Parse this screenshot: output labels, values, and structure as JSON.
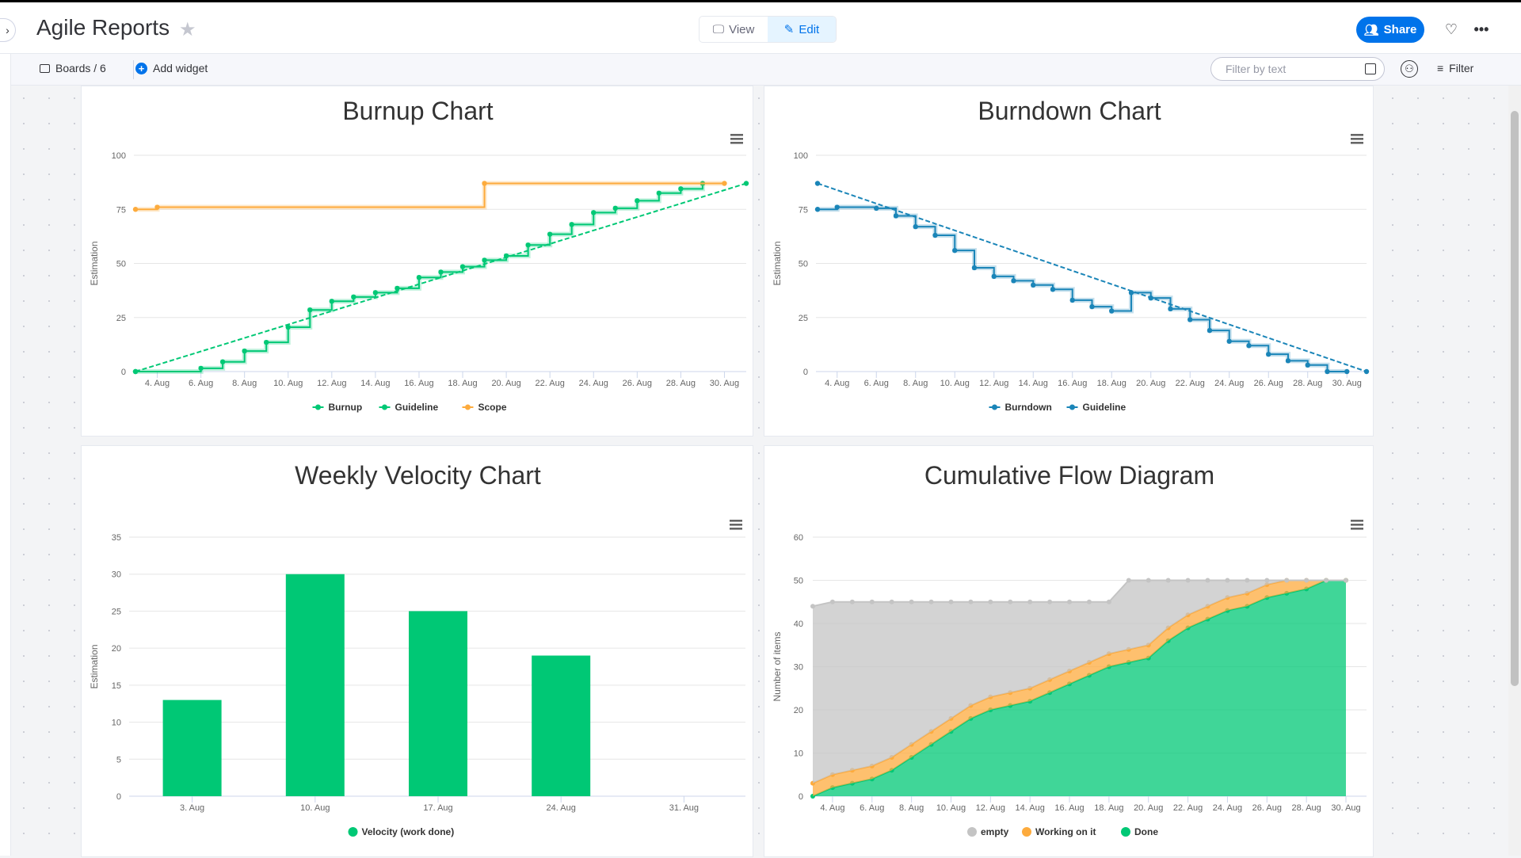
{
  "header": {
    "title": "Agile Reports",
    "view_label": "View",
    "edit_label": "Edit",
    "share_label": "Share"
  },
  "toolbar": {
    "boards_label": "Boards / 6",
    "add_widget_label": "Add widget",
    "filter_placeholder": "Filter by text",
    "filter_label": "Filter"
  },
  "colors": {
    "brand": "#0073ea",
    "green": "#00c875",
    "orange": "#fdab3d",
    "blue": "#1a85b8",
    "gray": "#c4c4c4"
  },
  "chart_data": [
    {
      "type": "line",
      "title": "Burnup Chart",
      "ylabel": "Estimation",
      "ylim": [
        0,
        100
      ],
      "y_ticks": [
        "0",
        "25",
        "50",
        "75",
        "100"
      ],
      "y_tick_values": [
        0,
        25,
        50,
        75,
        100
      ],
      "x_range": [
        "3 Aug",
        "31 Aug"
      ],
      "x_ticks": [
        "4. Aug",
        "6. Aug",
        "8. Aug",
        "10. Aug",
        "12. Aug",
        "14. Aug",
        "16. Aug",
        "18. Aug",
        "20. Aug",
        "22. Aug",
        "24. Aug",
        "26. Aug",
        "28. Aug",
        "30. Aug"
      ],
      "x_tick_days": [
        4,
        6,
        8,
        10,
        12,
        14,
        16,
        18,
        20,
        22,
        24,
        26,
        28,
        30
      ],
      "legend": "bottom",
      "grid": true,
      "series": [
        {
          "name": "Burnup",
          "color": "#00c875",
          "style": "step",
          "points": [
            [
              "3 Aug",
              0
            ],
            [
              "6 Aug",
              1.5
            ],
            [
              "7 Aug",
              4.5
            ],
            [
              "8 Aug",
              9.5
            ],
            [
              "9 Aug",
              13.5
            ],
            [
              "10 Aug",
              20.5
            ],
            [
              "11 Aug",
              28.5
            ],
            [
              "12 Aug",
              32.5
            ],
            [
              "13 Aug",
              34.5
            ],
            [
              "14 Aug",
              36.5
            ],
            [
              "15 Aug",
              38.5
            ],
            [
              "16 Aug",
              43.5
            ],
            [
              "17 Aug",
              46
            ],
            [
              "18 Aug",
              48.5
            ],
            [
              "19 Aug",
              51.5
            ],
            [
              "20 Aug",
              53.5
            ],
            [
              "21 Aug",
              58.5
            ],
            [
              "22 Aug",
              63.5
            ],
            [
              "23 Aug",
              68
            ],
            [
              "24 Aug",
              73.5
            ],
            [
              "25 Aug",
              75.5
            ],
            [
              "26 Aug",
              79
            ],
            [
              "27 Aug",
              82.5
            ],
            [
              "28 Aug",
              84.5
            ],
            [
              "29 Aug",
              87
            ]
          ]
        },
        {
          "name": "Guideline",
          "color": "#00c875",
          "style": "dashed",
          "points": [
            [
              "3 Aug",
              0
            ],
            [
              "31 Aug",
              87
            ]
          ]
        },
        {
          "name": "Scope",
          "color": "#fdab3d",
          "style": "step",
          "points": [
            [
              "3 Aug",
              75
            ],
            [
              "4 Aug",
              76
            ],
            [
              "19 Aug",
              87
            ],
            [
              "30 Aug",
              87
            ]
          ]
        }
      ]
    },
    {
      "type": "line",
      "title": "Burndown Chart",
      "ylabel": "Estimation",
      "ylim": [
        0,
        100
      ],
      "y_ticks": [
        "0",
        "25",
        "50",
        "75",
        "100"
      ],
      "y_tick_values": [
        0,
        25,
        50,
        75,
        100
      ],
      "x_range": [
        "3 Aug",
        "31 Aug"
      ],
      "x_ticks": [
        "4. Aug",
        "6. Aug",
        "8. Aug",
        "10. Aug",
        "12. Aug",
        "14. Aug",
        "16. Aug",
        "18. Aug",
        "20. Aug",
        "22. Aug",
        "24. Aug",
        "26. Aug",
        "28. Aug",
        "30. Aug"
      ],
      "x_tick_days": [
        4,
        6,
        8,
        10,
        12,
        14,
        16,
        18,
        20,
        22,
        24,
        26,
        28,
        30
      ],
      "legend": "bottom",
      "grid": true,
      "series": [
        {
          "name": "Burndown",
          "color": "#1a85b8",
          "style": "step",
          "points": [
            [
              "3 Aug",
              75
            ],
            [
              "4 Aug",
              76
            ],
            [
              "6 Aug",
              75.5
            ],
            [
              "7 Aug",
              72
            ],
            [
              "8 Aug",
              67
            ],
            [
              "9 Aug",
              63
            ],
            [
              "10 Aug",
              56
            ],
            [
              "11 Aug",
              48
            ],
            [
              "12 Aug",
              44
            ],
            [
              "13 Aug",
              42
            ],
            [
              "14 Aug",
              40
            ],
            [
              "15 Aug",
              38
            ],
            [
              "16 Aug",
              33
            ],
            [
              "17 Aug",
              30
            ],
            [
              "18 Aug",
              28
            ],
            [
              "19 Aug",
              36.5
            ],
            [
              "20 Aug",
              34
            ],
            [
              "21 Aug",
              29
            ],
            [
              "22 Aug",
              24
            ],
            [
              "23 Aug",
              19
            ],
            [
              "24 Aug",
              14
            ],
            [
              "25 Aug",
              12
            ],
            [
              "26 Aug",
              8
            ],
            [
              "27 Aug",
              5
            ],
            [
              "28 Aug",
              3
            ],
            [
              "29 Aug",
              0
            ],
            [
              "30 Aug",
              0
            ]
          ]
        },
        {
          "name": "Guideline",
          "color": "#1a85b8",
          "style": "dashed",
          "points": [
            [
              "3 Aug",
              87
            ],
            [
              "31 Aug",
              0
            ]
          ]
        }
      ]
    },
    {
      "type": "bar",
      "title": "Weekly Velocity Chart",
      "ylabel": "Estimation",
      "ylim": [
        0,
        35
      ],
      "y_ticks": [
        "0",
        "5",
        "10",
        "15",
        "20",
        "25",
        "30",
        "35"
      ],
      "y_tick_values": [
        0,
        5,
        10,
        15,
        20,
        25,
        30,
        35
      ],
      "categories": [
        "3. Aug",
        "10. Aug",
        "17. Aug",
        "24. Aug",
        "31. Aug"
      ],
      "legend": "bottom",
      "grid": true,
      "series": [
        {
          "name": "Velocity (work done)",
          "color": "#00c875",
          "values": [
            13,
            30,
            25,
            19,
            0
          ]
        }
      ]
    },
    {
      "type": "area",
      "stacked": true,
      "title": "Cumulative Flow Diagram",
      "ylabel": "Number of items",
      "ylim": [
        0,
        60
      ],
      "y_ticks": [
        "0",
        "10",
        "20",
        "30",
        "40",
        "50",
        "60"
      ],
      "y_tick_values": [
        0,
        10,
        20,
        30,
        40,
        50,
        60
      ],
      "x_range": [
        "3 Aug",
        "31 Aug"
      ],
      "x_ticks": [
        "4. Aug",
        "6. Aug",
        "8. Aug",
        "10. Aug",
        "12. Aug",
        "14. Aug",
        "16. Aug",
        "18. Aug",
        "20. Aug",
        "22. Aug",
        "24. Aug",
        "26. Aug",
        "28. Aug",
        "30. Aug"
      ],
      "x_tick_days": [
        4,
        6,
        8,
        10,
        12,
        14,
        16,
        18,
        20,
        22,
        24,
        26,
        28,
        30
      ],
      "dates": [
        "3 Aug",
        "4 Aug",
        "5 Aug",
        "6 Aug",
        "7 Aug",
        "8 Aug",
        "9 Aug",
        "10 Aug",
        "11 Aug",
        "12 Aug",
        "13 Aug",
        "14 Aug",
        "15 Aug",
        "16 Aug",
        "17 Aug",
        "18 Aug",
        "19 Aug",
        "20 Aug",
        "21 Aug",
        "22 Aug",
        "23 Aug",
        "24 Aug",
        "25 Aug",
        "26 Aug",
        "27 Aug",
        "28 Aug",
        "29 Aug",
        "30 Aug"
      ],
      "legend": "bottom",
      "grid": true,
      "series": [
        {
          "name": "empty",
          "color": "#c4c4c4",
          "values": [
            41,
            40,
            39,
            38,
            36,
            33,
            30,
            27,
            24,
            22,
            21,
            20,
            18,
            16,
            14,
            12,
            16,
            15,
            11,
            8,
            6,
            4,
            3,
            1,
            0,
            0,
            0,
            0
          ]
        },
        {
          "name": "Working on it",
          "color": "#fdab3d",
          "values": [
            3,
            3,
            3,
            3,
            3,
            3,
            3,
            3,
            3,
            3,
            3,
            3,
            3,
            3,
            3,
            3,
            3,
            3,
            3,
            3,
            3,
            3,
            3,
            3,
            3,
            2,
            0,
            0
          ]
        },
        {
          "name": "Done",
          "color": "#00c875",
          "values": [
            0,
            2,
            3,
            4,
            6,
            9,
            12,
            15,
            18,
            20,
            21,
            22,
            24,
            26,
            28,
            30,
            31,
            32,
            36,
            39,
            41,
            43,
            44,
            46,
            47,
            48,
            50,
            50
          ]
        }
      ]
    }
  ]
}
